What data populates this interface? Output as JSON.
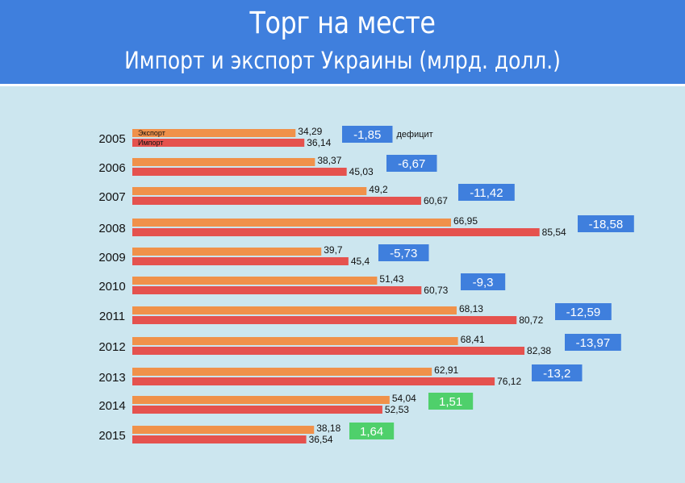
{
  "header": {
    "title": "Торг на месте",
    "subtitle": "Импорт и экспорт Украины (млрд. долл.)"
  },
  "chart_data": {
    "type": "bar",
    "orientation": "horizontal",
    "title": "Торг на месте",
    "subtitle": "Импорт и экспорт Украины (млрд. долл.)",
    "categories": [
      "2005",
      "2006",
      "2007",
      "2008",
      "2009",
      "2010",
      "2011",
      "2012",
      "2013",
      "2014",
      "2015"
    ],
    "series": [
      {
        "name": "Экспорт",
        "color": "#f0914a",
        "values": [
          34.29,
          38.37,
          49.2,
          66.95,
          39.7,
          51.43,
          68.13,
          68.41,
          62.91,
          54.04,
          38.18
        ],
        "labels": [
          "34,29",
          "38,37",
          "49,2",
          "66,95",
          "39,7",
          "51,43",
          "68,13",
          "68,41",
          "62,91",
          "54,04",
          "38,18"
        ]
      },
      {
        "name": "Импорт",
        "color": "#e5524e",
        "values": [
          36.14,
          45.03,
          60.67,
          85.54,
          45.4,
          60.73,
          80.72,
          82.38,
          76.12,
          52.53,
          36.54
        ],
        "labels": [
          "36,14",
          "45,03",
          "60,67",
          "85,54",
          "45,4",
          "60,73",
          "80,72",
          "82,38",
          "76,12",
          "52,53",
          "36,54"
        ]
      }
    ],
    "balance": {
      "values": [
        -1.85,
        -6.67,
        -11.42,
        -18.58,
        -5.73,
        -9.3,
        -12.59,
        -13.97,
        -13.2,
        1.51,
        1.64
      ],
      "labels": [
        "-1,85",
        "-6,67",
        "-11,42",
        "-18,58",
        "-5,73",
        "-9,3",
        "-12,59",
        "-13,97",
        "-13,2",
        "1,51",
        "1,64"
      ],
      "annotation": "дефицит",
      "deficit_color": "#3f7fdd",
      "surplus_color": "#4fd06b"
    },
    "legend": "inside-first-bars",
    "grid": false
  }
}
